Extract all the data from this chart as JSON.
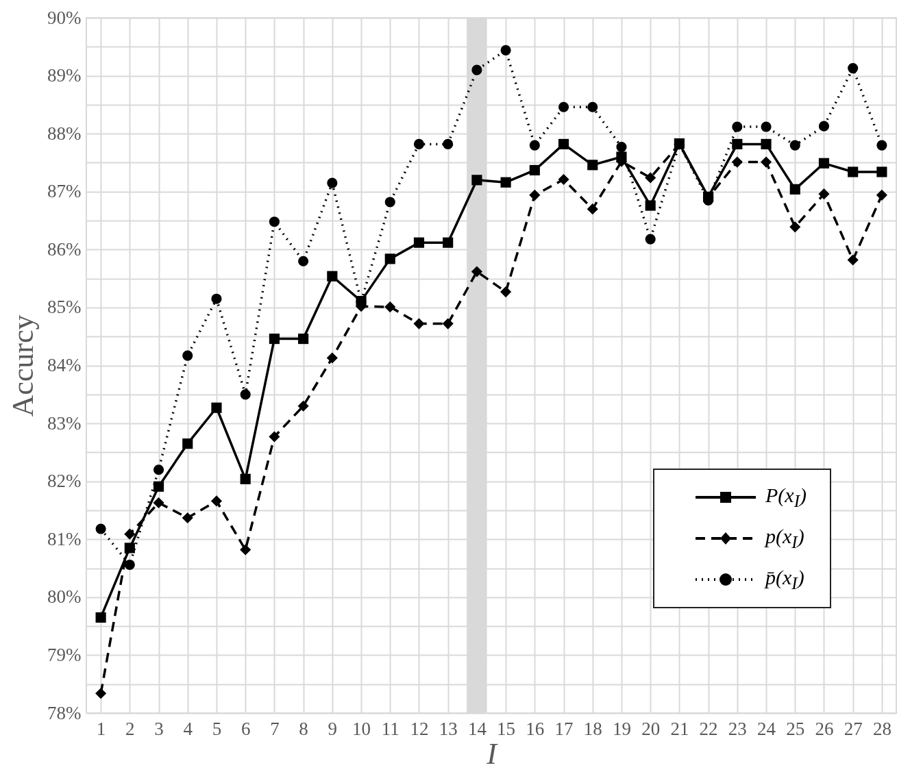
{
  "chart_data": {
    "type": "line",
    "xlabel": "I",
    "ylabel": "Accurcy",
    "x": [
      1,
      2,
      3,
      4,
      5,
      6,
      7,
      8,
      9,
      10,
      11,
      12,
      13,
      14,
      15,
      16,
      17,
      18,
      19,
      20,
      21,
      22,
      23,
      24,
      25,
      26,
      27,
      28
    ],
    "xlim": [
      0.5,
      28.5
    ],
    "xticks": [
      1,
      2,
      3,
      4,
      5,
      6,
      7,
      8,
      9,
      10,
      11,
      12,
      13,
      14,
      15,
      16,
      17,
      18,
      19,
      20,
      21,
      22,
      23,
      24,
      25,
      26,
      27,
      28
    ],
    "ylim": [
      78,
      90
    ],
    "yticks": [
      {
        "value": 78,
        "label": "78%"
      },
      {
        "value": 78.5,
        "label": null
      },
      {
        "value": 79,
        "label": "79%"
      },
      {
        "value": 79.5,
        "label": null
      },
      {
        "value": 80,
        "label": "80%"
      },
      {
        "value": 80.5,
        "label": null
      },
      {
        "value": 81,
        "label": "81%"
      },
      {
        "value": 81.5,
        "label": null
      },
      {
        "value": 82,
        "label": "82%"
      },
      {
        "value": 82.5,
        "label": null
      },
      {
        "value": 83,
        "label": "83%"
      },
      {
        "value": 83.5,
        "label": null
      },
      {
        "value": 84,
        "label": "84%"
      },
      {
        "value": 84.5,
        "label": null
      },
      {
        "value": 85,
        "label": "85%"
      },
      {
        "value": 85.5,
        "label": null
      },
      {
        "value": 86,
        "label": "86%"
      },
      {
        "value": 86.5,
        "label": null
      },
      {
        "value": 87,
        "label": "87%"
      },
      {
        "value": 87.5,
        "label": null
      },
      {
        "value": 88,
        "label": "88%"
      },
      {
        "value": 88.5,
        "label": null
      },
      {
        "value": 89,
        "label": "89%"
      },
      {
        "value": 89.5,
        "label": null
      },
      {
        "value": 90,
        "label": "90%"
      }
    ],
    "grid": true,
    "legend": "bottom right",
    "bands": [
      {
        "axis": "x",
        "from": 13.65,
        "to": 14.35,
        "color": "#d9d9d9"
      }
    ],
    "series": [
      {
        "name": "P(x$_{I}$)",
        "color": "#000000",
        "marker": "square",
        "line_style": "solid",
        "values": [
          79.65,
          80.85,
          81.91,
          82.65,
          83.27,
          82.04,
          84.46,
          84.46,
          85.54,
          85.11,
          85.84,
          86.12,
          86.12,
          87.2,
          87.16,
          87.37,
          87.82,
          87.46,
          87.6,
          86.76,
          87.83,
          86.91,
          87.82,
          87.82,
          87.04,
          87.49,
          87.34,
          87.34
        ]
      },
      {
        "name": "p(x$_{I}$)",
        "color": "#000000",
        "marker": "diamond",
        "line_style": "dashed",
        "values": [
          78.34,
          81.09,
          81.63,
          81.37,
          81.66,
          80.82,
          82.77,
          83.3,
          84.13,
          85.02,
          85.01,
          84.72,
          84.72,
          85.62,
          85.27,
          86.94,
          87.21,
          86.7,
          87.52,
          87.24,
          87.82,
          86.9,
          87.51,
          87.51,
          86.39,
          86.96,
          85.82,
          86.94
        ]
      },
      {
        "name": "p̄(x$_{I}$)",
        "color": "#000000",
        "marker": "circle",
        "line_style": "dotted",
        "values": [
          81.18,
          80.56,
          82.2,
          84.17,
          85.15,
          83.5,
          86.48,
          85.8,
          87.15,
          85.1,
          86.82,
          87.82,
          87.82,
          89.1,
          89.44,
          87.8,
          88.46,
          88.46,
          87.77,
          86.18,
          87.82,
          86.85,
          88.12,
          88.12,
          87.8,
          88.13,
          89.13,
          87.8
        ]
      }
    ]
  }
}
